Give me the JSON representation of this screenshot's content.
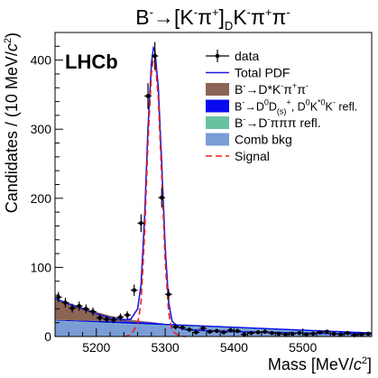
{
  "chart_data": {
    "type": "scatter",
    "title": {
      "p1": "B",
      "p1sup": "-",
      "p2": "→[K",
      "p2sup": "-",
      "p3": "π",
      "p3sup": "+",
      "p4": "]",
      "p4sub": "D",
      "p5": "K",
      "p5sup": "-",
      "p6": "π",
      "p6sup": "+",
      "p7": "π",
      "p7sup": "-"
    },
    "experiment_label": "LHCb",
    "xlabel": {
      "pre": "Mass [MeV/",
      "c": "c",
      "sup": "2",
      "post": "]"
    },
    "ylabel": {
      "pre": "Candidates / (10 MeV/",
      "c": "c",
      "sup": "2",
      "post": ")"
    },
    "xlim": [
      5140,
      5600
    ],
    "ylim": [
      0,
      440
    ],
    "x_ticks": [
      5200,
      5300,
      5400,
      5500
    ],
    "y_ticks": [
      0,
      100,
      200,
      300,
      400
    ],
    "legend_position": "top-right",
    "legend": [
      {
        "key": "data",
        "style": "marker",
        "color": "#000000",
        "parts": [
          {
            "t": "data"
          }
        ]
      },
      {
        "key": "total",
        "style": "line",
        "color": "#1a1adb",
        "parts": [
          {
            "t": "Total PDF"
          }
        ]
      },
      {
        "key": "dstar",
        "style": "box",
        "color": "#8b6555",
        "parts": [
          {
            "t": "B"
          },
          {
            "t": "-",
            "sup": 1
          },
          {
            "t": "→D*K"
          },
          {
            "t": "-",
            "sup": 1
          },
          {
            "t": "π"
          },
          {
            "t": "+",
            "sup": 1
          },
          {
            "t": "π"
          },
          {
            "t": "-",
            "sup": 1
          }
        ]
      },
      {
        "key": "dds",
        "style": "box",
        "color": "#0a0af2",
        "parts": [
          {
            "t": "B"
          },
          {
            "t": "-",
            "sup": 1
          },
          {
            "t": "→D"
          },
          {
            "t": "0",
            "sup": 1
          },
          {
            "t": "D"
          },
          {
            "t": "(s)",
            "sub": 1
          },
          {
            "t": "+",
            "sup": 1
          },
          {
            "t": ", D"
          },
          {
            "t": "0",
            "sup": 1
          },
          {
            "t": "K"
          },
          {
            "t": "*0",
            "sup": 1
          },
          {
            "t": "K"
          },
          {
            "t": "-",
            "sup": 1
          },
          {
            "t": " refl."
          }
        ]
      },
      {
        "key": "d3pi",
        "style": "box",
        "color": "#66c2a0",
        "parts": [
          {
            "t": "B"
          },
          {
            "t": "-",
            "sup": 1
          },
          {
            "t": "→D"
          },
          {
            "t": "-",
            "sup": 1
          },
          {
            "t": "πππ refl."
          }
        ]
      },
      {
        "key": "comb",
        "style": "box",
        "color": "#7a9dd6",
        "parts": [
          {
            "t": "Comb bkg"
          }
        ]
      },
      {
        "key": "signal",
        "style": "dash",
        "color": "#e82020",
        "parts": [
          {
            "t": "Signal"
          }
        ]
      }
    ],
    "series": [
      {
        "name": "data",
        "type": "errorbar",
        "x": [
          5145,
          5155,
          5165,
          5175,
          5185,
          5195,
          5205,
          5215,
          5225,
          5235,
          5245,
          5255,
          5265,
          5275,
          5285,
          5295,
          5305,
          5315,
          5325,
          5335,
          5345,
          5355,
          5365,
          5375,
          5385,
          5395,
          5405,
          5415,
          5425,
          5435,
          5445,
          5455,
          5465,
          5475,
          5485,
          5495,
          5505,
          5515,
          5525,
          5535,
          5545,
          5555,
          5565,
          5575,
          5585,
          5595
        ],
        "y": [
          57,
          49,
          41,
          44,
          40,
          36,
          27,
          25,
          24,
          28,
          31,
          67,
          164,
          348,
          406,
          201,
          61,
          14,
          13,
          10,
          6,
          12,
          7,
          8,
          6,
          9,
          8,
          3,
          5,
          6,
          7,
          5,
          4,
          3,
          4,
          5,
          3,
          4,
          6,
          7,
          4,
          3,
          5,
          2,
          3,
          4
        ],
        "yerr": [
          7.5,
          7,
          6.4,
          6.6,
          6.3,
          6,
          5.2,
          5,
          4.9,
          5.3,
          5.6,
          8.2,
          12.8,
          18.7,
          20.1,
          14.2,
          7.8,
          3.7,
          3.6,
          3.2,
          2.4,
          3.5,
          2.6,
          2.8,
          2.4,
          3,
          2.8,
          1.7,
          2.2,
          2.4,
          2.6,
          2.2,
          2,
          1.7,
          2,
          2.2,
          1.7,
          2,
          2.4,
          2.6,
          2,
          1.7,
          2.2,
          1.4,
          1.7,
          2
        ]
      },
      {
        "name": "Total PDF",
        "x": [
          5140,
          5160,
          5180,
          5200,
          5220,
          5240,
          5250,
          5260,
          5265,
          5270,
          5275,
          5280,
          5283,
          5285,
          5290,
          5295,
          5300,
          5305,
          5310,
          5320,
          5330,
          5350,
          5400,
          5450,
          5500,
          5550,
          5600
        ],
        "y": [
          55,
          47,
          40,
          33,
          27,
          24,
          25,
          40,
          75,
          170,
          300,
          395,
          418,
          415,
          360,
          250,
          130,
          50,
          22,
          13,
          10,
          9,
          7,
          6,
          5,
          4,
          4
        ]
      },
      {
        "name": "Signal",
        "x": [
          5240,
          5250,
          5260,
          5265,
          5270,
          5275,
          5280,
          5283,
          5285,
          5290,
          5295,
          5300,
          5305,
          5310,
          5320,
          5330
        ],
        "y": [
          0,
          2,
          18,
          50,
          145,
          280,
          380,
          405,
          404,
          345,
          230,
          110,
          35,
          8,
          1,
          0
        ]
      },
      {
        "name": "Comb bkg",
        "x": [
          5140,
          5600
        ],
        "y": [
          22,
          3
        ]
      },
      {
        "name": "B->D pi pi pi refl.",
        "x": [
          5140,
          5200,
          5260,
          5300,
          5600
        ],
        "y": [
          1,
          1,
          1,
          1,
          1
        ]
      },
      {
        "name": "B->D0 D(s)+ refl.",
        "x": [
          5140,
          5200,
          5250,
          5280,
          5300,
          5600
        ],
        "y": [
          1,
          2,
          3,
          3,
          2,
          2
        ]
      },
      {
        "name": "B->D*K pi pi",
        "x": [
          5140,
          5160,
          5180,
          5200,
          5220,
          5240,
          5260,
          5275,
          5300,
          5600
        ],
        "y": [
          32,
          25,
          19,
          13,
          8,
          4,
          2,
          1,
          0,
          0
        ]
      }
    ]
  }
}
